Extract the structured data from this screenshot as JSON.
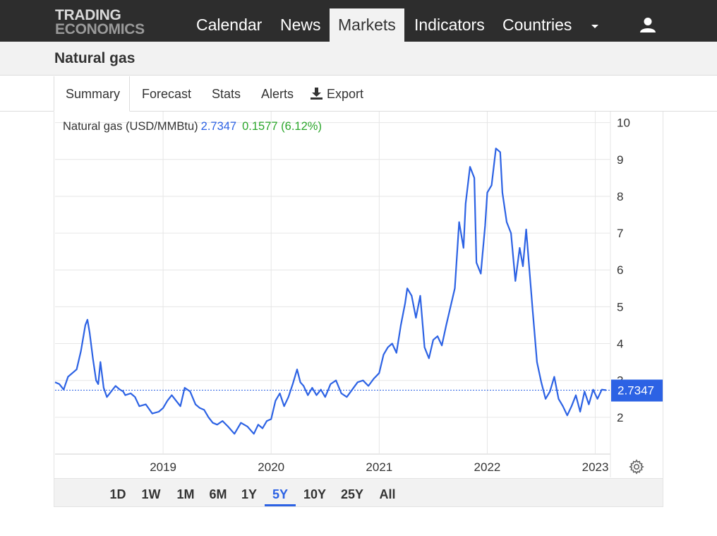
{
  "brand": {
    "line1": "TRADING",
    "line2": "ECONOMICS"
  },
  "nav": {
    "items": [
      "Calendar",
      "News",
      "Markets",
      "Indicators",
      "Countries"
    ],
    "active": "Markets"
  },
  "page": {
    "title": "Natural gas"
  },
  "tabs": {
    "summary": "Summary",
    "forecast": "Forecast",
    "stats": "Stats",
    "alerts": "Alerts",
    "export": "Export"
  },
  "quote": {
    "name": "Natural gas (USD/MMBtu)",
    "price": "2.7347",
    "change": "0.1577 (6.12%)"
  },
  "ranges": [
    "1D",
    "1W",
    "1M",
    "6M",
    "1Y",
    "5Y",
    "10Y",
    "25Y",
    "All"
  ],
  "active_range": "5Y",
  "colors": {
    "line": "#2c62e4",
    "up": "#2ba62b",
    "nav_bg": "#2d2d2d"
  },
  "chart_data": {
    "type": "line",
    "title": "",
    "series": [
      {
        "name": "Natural gas (USD/MMBtu)",
        "x": [
          2018.0,
          2018.04,
          2018.08,
          2018.12,
          2018.16,
          2018.2,
          2018.24,
          2018.28,
          2018.3,
          2018.32,
          2018.35,
          2018.38,
          2018.4,
          2018.42,
          2018.45,
          2018.48,
          2018.52,
          2018.56,
          2018.6,
          2018.63,
          2018.65,
          2018.7,
          2018.74,
          2018.78,
          2018.84,
          2018.9,
          2018.96,
          2019.0,
          2019.04,
          2019.08,
          2019.12,
          2019.16,
          2019.2,
          2019.25,
          2019.3,
          2019.34,
          2019.38,
          2019.42,
          2019.46,
          2019.5,
          2019.55,
          2019.6,
          2019.66,
          2019.72,
          2019.78,
          2019.84,
          2019.88,
          2019.92,
          2019.96,
          2020.0,
          2020.04,
          2020.08,
          2020.12,
          2020.16,
          2020.2,
          2020.24,
          2020.27,
          2020.3,
          2020.34,
          2020.38,
          2020.42,
          2020.46,
          2020.5,
          2020.55,
          2020.6,
          2020.65,
          2020.7,
          2020.75,
          2020.8,
          2020.85,
          2020.9,
          2020.95,
          2021.0,
          2021.04,
          2021.08,
          2021.12,
          2021.16,
          2021.2,
          2021.24,
          2021.26,
          2021.3,
          2021.34,
          2021.38,
          2021.42,
          2021.46,
          2021.5,
          2021.54,
          2021.58,
          2021.62,
          2021.66,
          2021.7,
          2021.74,
          2021.78,
          2021.8,
          2021.84,
          2021.88,
          2021.9,
          2021.94,
          2021.98,
          2022.0,
          2022.04,
          2022.08,
          2022.12,
          2022.14,
          2022.18,
          2022.22,
          2022.26,
          2022.3,
          2022.33,
          2022.36,
          2022.39,
          2022.42,
          2022.46,
          2022.5,
          2022.54,
          2022.58,
          2022.62,
          2022.66,
          2022.7,
          2022.74,
          2022.78,
          2022.82,
          2022.86,
          2022.9,
          2022.94,
          2022.98,
          2023.02,
          2023.06,
          2023.1
        ],
        "values": [
          2.95,
          2.9,
          2.75,
          3.1,
          3.2,
          3.3,
          3.8,
          4.5,
          4.65,
          4.3,
          3.6,
          3.0,
          2.9,
          3.5,
          2.8,
          2.55,
          2.7,
          2.85,
          2.75,
          2.7,
          2.6,
          2.65,
          2.55,
          2.3,
          2.35,
          2.1,
          2.15,
          2.25,
          2.45,
          2.6,
          2.45,
          2.3,
          2.8,
          2.7,
          2.35,
          2.25,
          2.2,
          2.0,
          1.85,
          1.8,
          1.9,
          1.75,
          1.55,
          1.85,
          1.75,
          1.55,
          1.8,
          1.7,
          1.9,
          1.95,
          2.45,
          2.65,
          2.3,
          2.55,
          2.9,
          3.3,
          2.95,
          2.85,
          2.6,
          2.8,
          2.6,
          2.75,
          2.55,
          2.9,
          3.0,
          2.65,
          2.55,
          2.75,
          2.95,
          3.0,
          2.85,
          3.05,
          3.2,
          3.7,
          3.9,
          4.0,
          3.75,
          4.5,
          5.1,
          5.5,
          5.3,
          4.7,
          5.3,
          3.9,
          3.6,
          4.1,
          4.2,
          3.95,
          4.5,
          5.0,
          5.5,
          7.3,
          6.6,
          7.8,
          8.8,
          8.5,
          6.2,
          5.9,
          7.2,
          8.1,
          8.3,
          9.3,
          9.2,
          8.1,
          7.3,
          7.0,
          5.7,
          6.6,
          6.1,
          7.1,
          6.0,
          4.9,
          3.5,
          2.95,
          2.5,
          2.7,
          3.1,
          2.5,
          2.3,
          2.05,
          2.3,
          2.6,
          2.15,
          2.7,
          2.35,
          2.75,
          2.5,
          2.75,
          2.7347
        ]
      }
    ],
    "x_ticks": [
      "2019",
      "2020",
      "2021",
      "2022",
      "2023"
    ],
    "x_tick_values": [
      2019,
      2020,
      2021,
      2022,
      2023
    ],
    "xlim": [
      2018.0,
      2023.14
    ],
    "y_ticks": [
      2,
      3,
      4,
      5,
      6,
      7,
      8,
      9,
      10
    ],
    "ylim": [
      1,
      10.3
    ],
    "last_label": "2.7347",
    "grid": true,
    "y_axis_side": "right"
  }
}
